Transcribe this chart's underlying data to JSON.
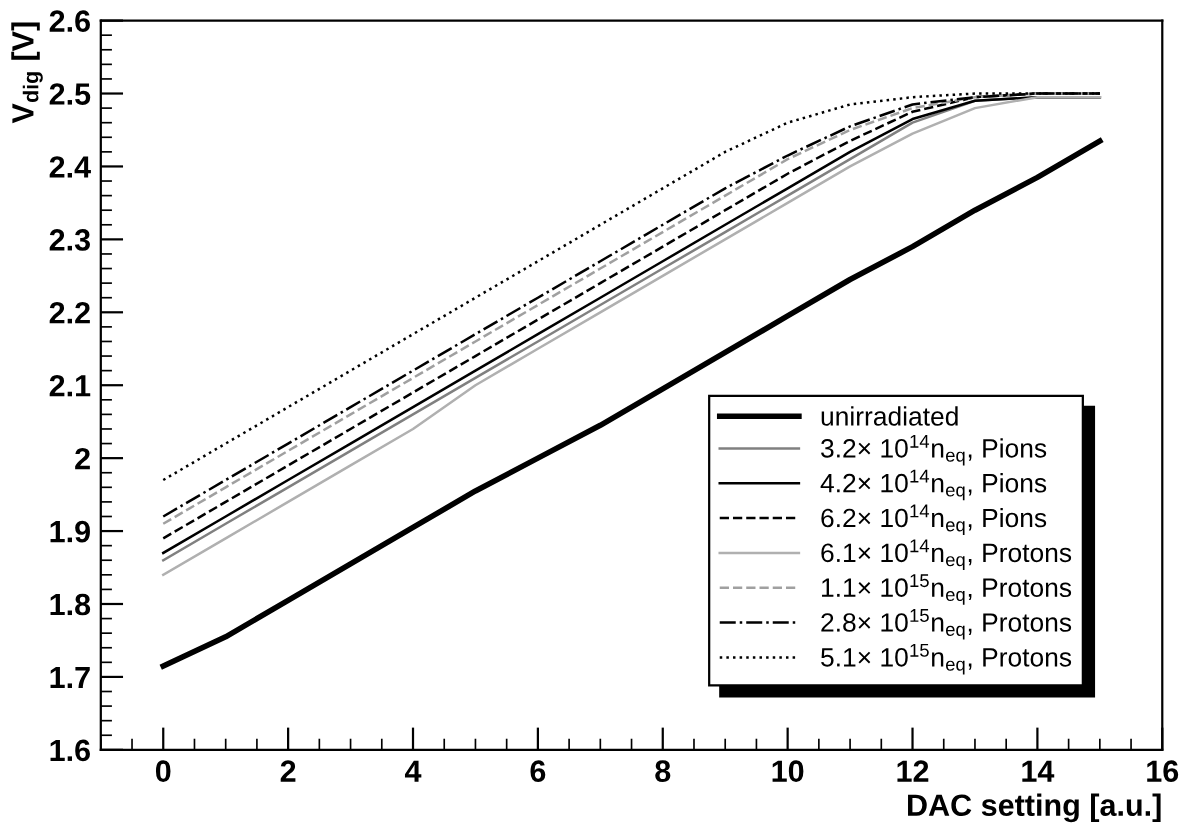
{
  "chart_data": {
    "type": "line",
    "xlabel": "DAC setting [a.u.]",
    "ylabel": "V$_{dig}$ [V]",
    "x": [
      0,
      1,
      2,
      3,
      4,
      5,
      6,
      7,
      8,
      9,
      10,
      11,
      12,
      13,
      14,
      15
    ],
    "xlim": [
      -1,
      16
    ],
    "xticks": [
      0,
      2,
      4,
      6,
      8,
      10,
      12,
      14,
      16
    ],
    "ylim": [
      1.6,
      2.6
    ],
    "yticks": [
      1.6,
      1.7,
      1.8,
      1.9,
      {
        "value": 2.0,
        "label": "2"
      },
      2.1,
      2.2,
      2.3,
      2.4,
      2.5,
      2.6
    ],
    "grid": false,
    "legend": "bottom right",
    "marker": "none",
    "series": [
      {
        "name": "unirradiated",
        "color": "#000000",
        "line_style": "solid",
        "values": [
          1.715,
          1.755,
          1.805,
          1.855,
          1.905,
          1.955,
          2.0,
          2.045,
          2.095,
          2.145,
          2.195,
          2.245,
          2.29,
          2.34,
          2.385,
          2.435
        ]
      },
      {
        "name": "3.2× 10$^{14}$n$_{eq}$, Pions",
        "color": "#808080",
        "line_style": "solid",
        "values": [
          1.86,
          1.91,
          1.96,
          2.01,
          2.06,
          2.11,
          2.16,
          2.21,
          2.26,
          2.31,
          2.36,
          2.41,
          2.46,
          2.49,
          2.495,
          2.495
        ]
      },
      {
        "name": "4.2× 10$^{14}$n$_{eq}$, Pions",
        "color": "#000000",
        "line_style": "solid",
        "values": [
          1.87,
          1.92,
          1.97,
          2.02,
          2.07,
          2.12,
          2.17,
          2.22,
          2.27,
          2.32,
          2.37,
          2.42,
          2.465,
          2.49,
          2.495,
          2.495
        ]
      },
      {
        "name": "6.2× 10$^{14}$n$_{eq}$, Pions",
        "color": "#000000",
        "line_style": "dashed",
        "values": [
          1.89,
          1.94,
          1.99,
          2.04,
          2.09,
          2.14,
          2.19,
          2.24,
          2.29,
          2.34,
          2.39,
          2.435,
          2.475,
          2.495,
          2.5,
          2.5
        ]
      },
      {
        "name": "6.1× 10$^{14}$n$_{eq}$, Protons",
        "color": "#b0b0b0",
        "line_style": "solid",
        "values": [
          1.84,
          1.89,
          1.94,
          1.99,
          2.04,
          2.1,
          2.15,
          2.2,
          2.25,
          2.3,
          2.35,
          2.4,
          2.445,
          2.48,
          2.495,
          2.495
        ]
      },
      {
        "name": "1.1× 10$^{15}$n$_{eq}$, Protons",
        "color": "#a0a0a0",
        "line_style": "dashed",
        "values": [
          1.91,
          1.96,
          2.01,
          2.06,
          2.11,
          2.16,
          2.21,
          2.26,
          2.31,
          2.36,
          2.41,
          2.45,
          2.48,
          2.495,
          2.5,
          2.5
        ]
      },
      {
        "name": "2.8× 10$^{15}$n$_{eq}$, Protons",
        "color": "#000000",
        "line_style": "dashdot",
        "values": [
          1.92,
          1.97,
          2.02,
          2.07,
          2.12,
          2.17,
          2.22,
          2.27,
          2.32,
          2.37,
          2.415,
          2.455,
          2.485,
          2.495,
          2.5,
          2.5
        ]
      },
      {
        "name": "5.1× 10$^{15}$n$_{eq}$, Protons",
        "color": "#000000",
        "line_style": "dotted",
        "values": [
          1.97,
          2.02,
          2.07,
          2.12,
          2.17,
          2.22,
          2.27,
          2.32,
          2.37,
          2.42,
          2.46,
          2.485,
          2.495,
          2.5,
          2.5,
          2.5
        ]
      }
    ]
  }
}
